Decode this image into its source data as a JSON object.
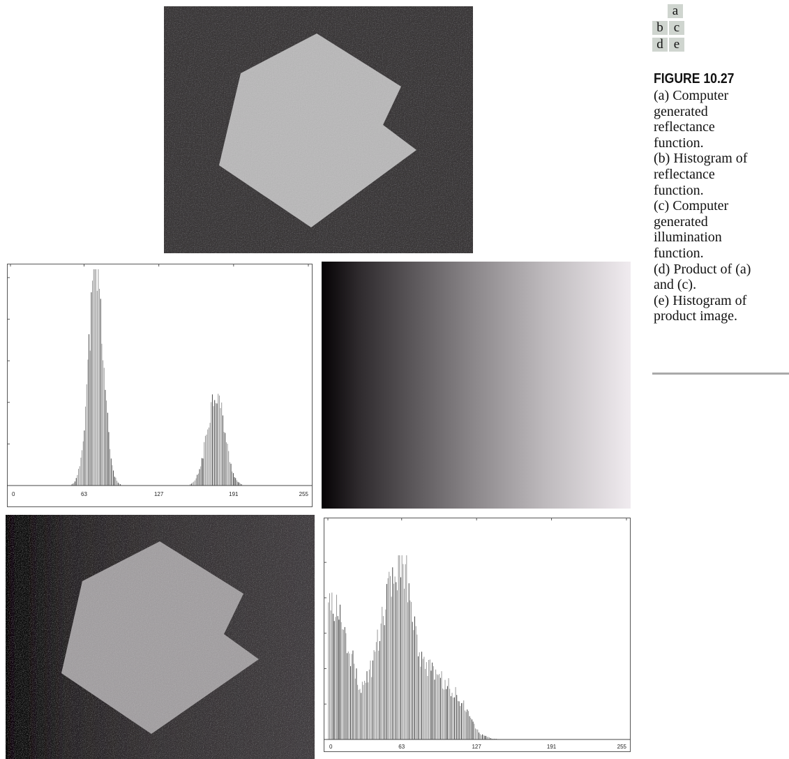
{
  "layout_key": {
    "top": [
      "a"
    ],
    "middle": [
      "b",
      "c"
    ],
    "bottom": [
      "d",
      "e"
    ]
  },
  "caption": {
    "label": "FIGURE 10.27",
    "lines": [
      "(a) Computer",
      "generated",
      "reflectance",
      "function.",
      "(b) Histogram of",
      "reflectance",
      "function.",
      "(c) Computer",
      "generated",
      "illumination",
      "function.",
      "(d) Product of (a)",
      "and (c).",
      "(e) Histogram of",
      "product image."
    ]
  },
  "colors": {
    "background_dark": "#3a3739",
    "polygon_light": "#b9b8b9",
    "key_cell_fill": "#cfd5cf",
    "rule": "#a9a9a9"
  },
  "chart_data": [
    {
      "id": "b",
      "type": "bar",
      "description_visible": "histogram",
      "x_ticks": [
        "0",
        "63",
        "127",
        "191",
        "255"
      ],
      "xlim": [
        0,
        255
      ],
      "peaks": [
        {
          "center": 73,
          "width_sd": 6.5,
          "relative_height": 1.0
        },
        {
          "center": 176,
          "width_sd": 7.5,
          "relative_height": 0.44
        }
      ]
    },
    {
      "id": "e",
      "type": "bar",
      "description_visible": "histogram",
      "x_ticks": [
        "0",
        "63",
        "127",
        "191",
        "255"
      ],
      "xlim": [
        0,
        255
      ],
      "profile": [
        [
          0,
          0.8
        ],
        [
          5,
          0.75
        ],
        [
          10,
          0.68
        ],
        [
          15,
          0.58
        ],
        [
          20,
          0.46
        ],
        [
          25,
          0.34
        ],
        [
          28,
          0.3
        ],
        [
          32,
          0.32
        ],
        [
          38,
          0.42
        ],
        [
          45,
          0.62
        ],
        [
          52,
          0.82
        ],
        [
          58,
          0.95
        ],
        [
          62,
          1.0
        ],
        [
          66,
          0.95
        ],
        [
          70,
          0.8
        ],
        [
          75,
          0.6
        ],
        [
          80,
          0.45
        ],
        [
          85,
          0.4
        ],
        [
          90,
          0.37
        ],
        [
          100,
          0.32
        ],
        [
          110,
          0.25
        ],
        [
          118,
          0.17
        ],
        [
          125,
          0.08
        ],
        [
          130,
          0.03
        ],
        [
          140,
          0.005
        ],
        [
          150,
          0.0
        ]
      ]
    }
  ]
}
